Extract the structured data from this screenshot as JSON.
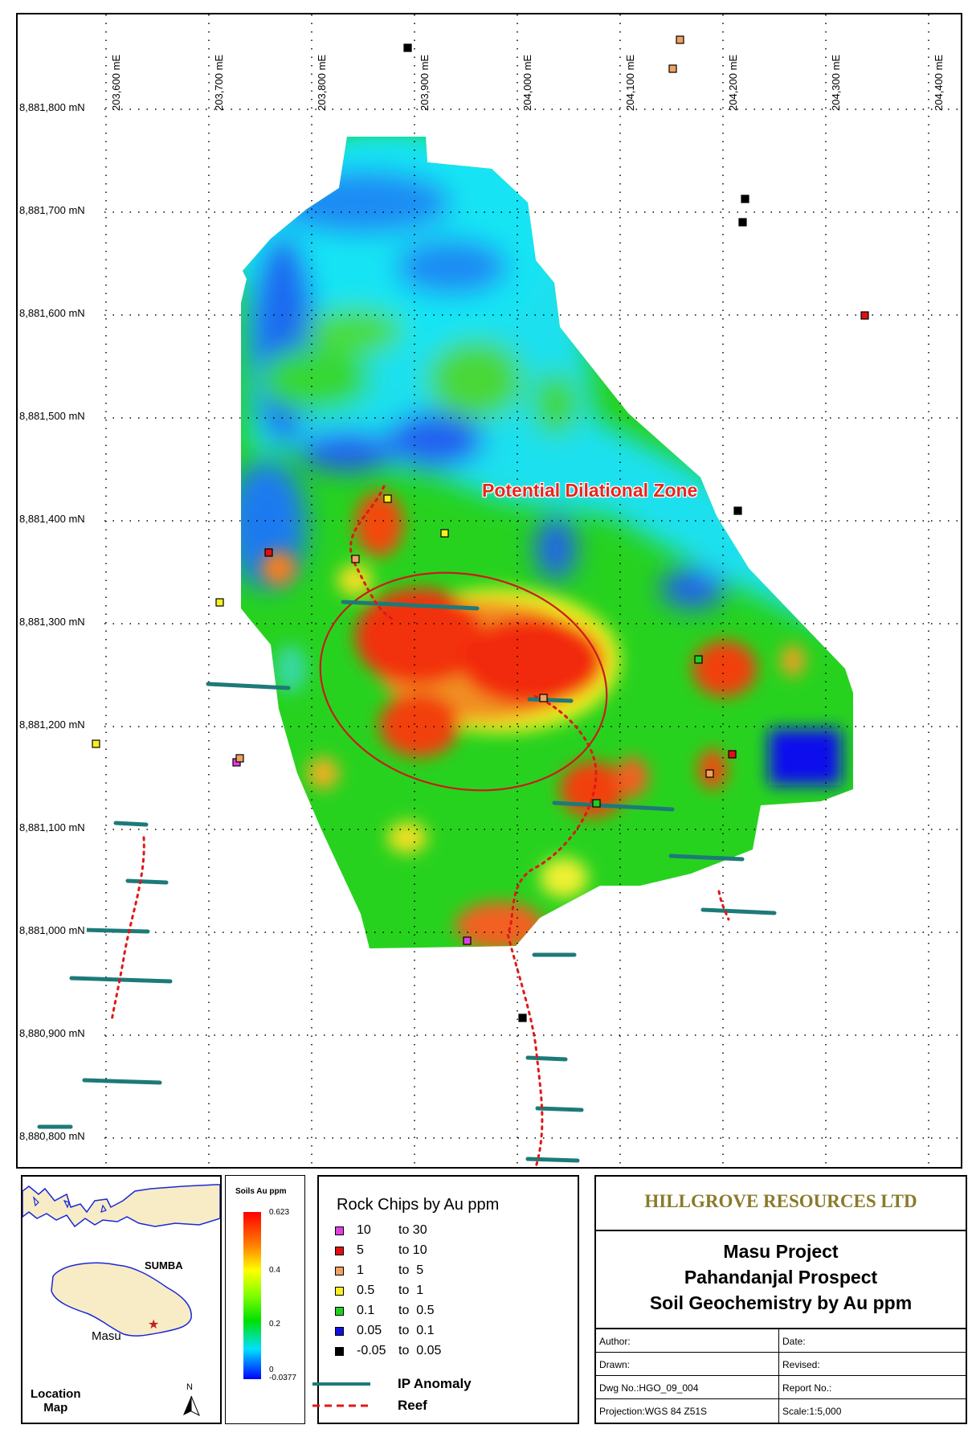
{
  "map": {
    "easting_labels": [
      "203,600 mE",
      "203,700 mE",
      "203,800 mE",
      "203,900 mE",
      "204,000 mE",
      "204,100 mE",
      "204,200 mE",
      "204,300 mE",
      "204,400 mE"
    ],
    "northing_labels": [
      "8,881,800 mN",
      "8,881,700 mN",
      "8,881,600 mN",
      "8,881,500 mN",
      "8,881,400 mN",
      "8,881,300 mN",
      "8,881,200 mN",
      "8,881,100 mN",
      "8,881,000 mN",
      "8,880,900 mN",
      "8,880,800 mN"
    ],
    "annotation": "Potential Dilational Zone",
    "colors": {
      "annotation": "#e8261e",
      "ip_anomaly": "#1d7a78",
      "reef": "#e01818",
      "ellipse": "#cc1a1a"
    }
  },
  "location_map": {
    "island_label": "SUMBA",
    "town_label": "Masu",
    "caption_line1": "Location",
    "caption_line2": "Map",
    "north_label": "N"
  },
  "soil_legend": {
    "title": "Soils Au ppm",
    "ticks": [
      "0.623",
      "0.4",
      "0.2",
      "0",
      "-0.0377"
    ]
  },
  "rock_legend": {
    "title": "Rock Chips by  Au ppm",
    "items": [
      {
        "from": "10",
        "to": "to 30",
        "color": "#e040e0"
      },
      {
        "from": "5",
        "to": "to 10",
        "color": "#e01010"
      },
      {
        "from": "1",
        "to": "to  5",
        "color": "#f0a060"
      },
      {
        "from": "0.5",
        "to": "to  1",
        "color": "#f8f020"
      },
      {
        "from": "0.1",
        "to": "to  0.5",
        "color": "#20d020"
      },
      {
        "from": "0.05",
        "to": "to  0.1",
        "color": "#1010e0"
      },
      {
        "from": "-0.05",
        "to": "to  0.05",
        "color": "#000000"
      }
    ],
    "ip_label": "IP Anomaly",
    "reef_label": "Reef"
  },
  "title_block": {
    "company": "HILLGROVE RESOURCES LTD",
    "project": "Masu Project",
    "prospect": "Pahandanjal Prospect",
    "subject": "Soil Geochemistry by Au ppm",
    "author": "Author:",
    "date": "Date:",
    "drawn": "Drawn:",
    "revised": "Revised:",
    "dwg": "Dwg No.:HGO_09_004",
    "report": "Report No.:",
    "projection": "Projection:WGS 84 Z51S",
    "scale": "Scale:1:5,000",
    "company_color": "#8a7a2a"
  }
}
